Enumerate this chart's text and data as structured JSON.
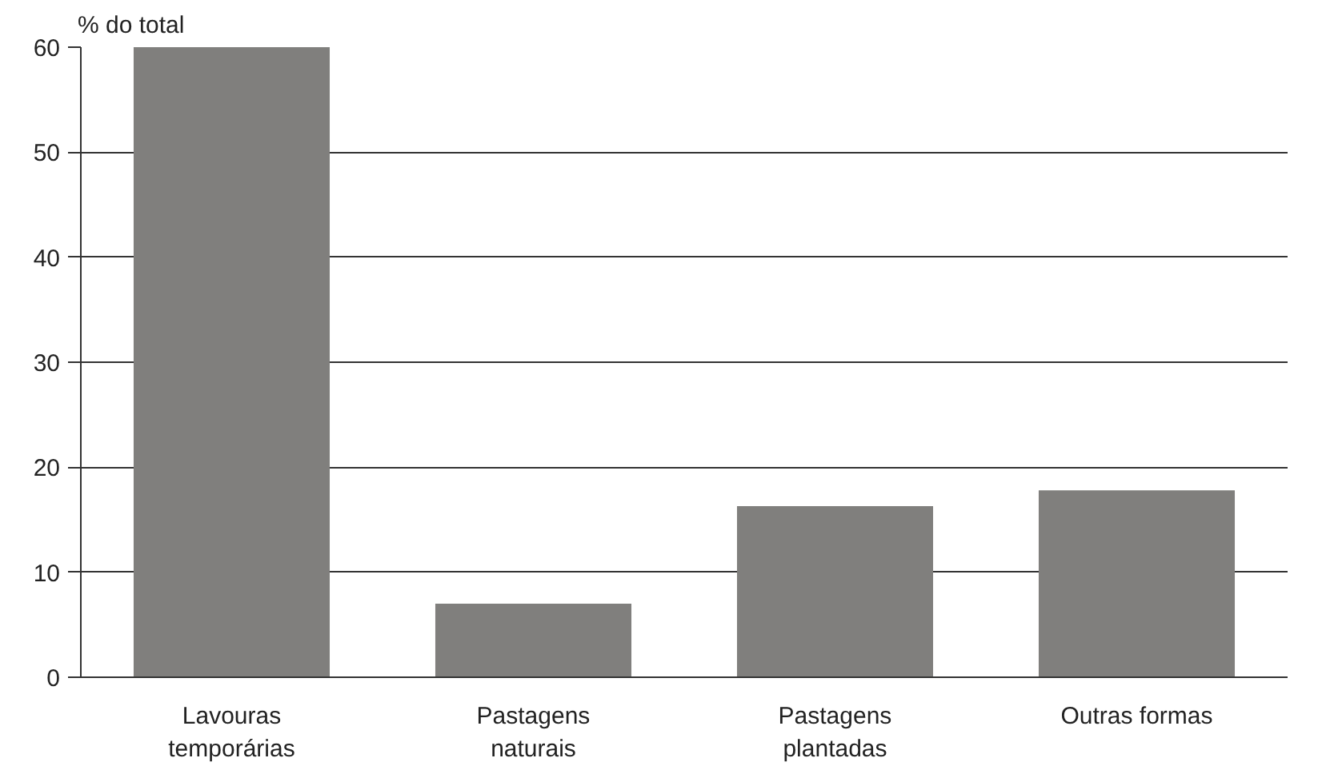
{
  "chart_data": {
    "type": "bar",
    "ylabel": "% do total",
    "categories": [
      "Lavouras\ntemporárias",
      "Pastagens\nnaturais",
      "Pastagens\nplantadas",
      "Outras formas"
    ],
    "values": [
      60,
      7,
      16.3,
      17.8
    ],
    "color": "#807f7d",
    "ylim": [
      0,
      60
    ],
    "yticks": [
      0,
      10,
      20,
      30,
      40,
      50,
      60
    ],
    "grid": "y"
  }
}
